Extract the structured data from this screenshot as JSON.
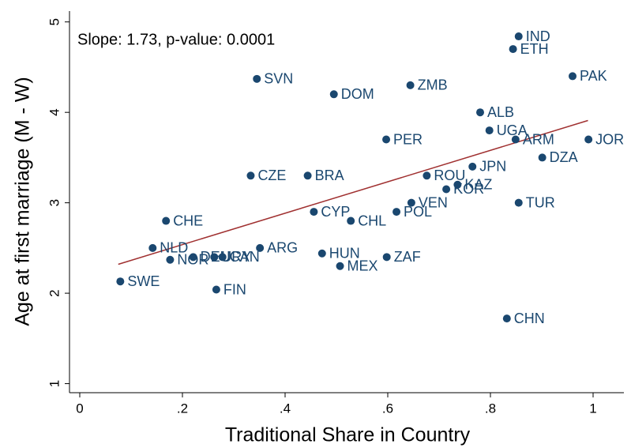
{
  "chart_data": {
    "type": "scatter",
    "annotation": "Slope: 1.73, p-value: 0.0001",
    "x_label": "Traditional Share in Country",
    "y_label": "Age at first marriage (M - W)",
    "color": "#1a476f",
    "labels": [
      "IND",
      "ETH",
      "PAK",
      "SVN",
      "ZMB",
      "DOM",
      "ALB",
      "UGA",
      "PER",
      "ARM",
      "JOR",
      "DZA",
      "JPN",
      "CZE",
      "BRA",
      "ROU",
      "KAZ",
      "KOR",
      "TUR",
      "VEN",
      "CYP",
      "POL",
      "CHE",
      "CHL",
      "ARG",
      "NLD",
      "HUN",
      "ZAF",
      "DEU",
      "URY",
      "CAN",
      "NOR",
      "MEX",
      "SWE",
      "FIN",
      "CHN"
    ],
    "x": [
      0.855,
      0.844,
      0.96,
      0.345,
      0.644,
      0.495,
      0.78,
      0.798,
      0.597,
      0.849,
      0.991,
      0.901,
      0.765,
      0.333,
      0.444,
      0.676,
      0.736,
      0.714,
      0.855,
      0.646,
      0.456,
      0.617,
      0.168,
      0.528,
      0.351,
      0.142,
      0.472,
      0.598,
      0.221,
      0.262,
      0.278,
      0.176,
      0.507,
      0.079,
      0.266,
      0.832
    ],
    "values": [
      4.84,
      4.7,
      4.4,
      4.37,
      4.3,
      4.2,
      4.0,
      3.8,
      3.7,
      3.7,
      3.7,
      3.5,
      3.4,
      3.3,
      3.3,
      3.3,
      3.2,
      3.15,
      3.0,
      3.0,
      2.9,
      2.9,
      2.8,
      2.8,
      2.5,
      2.5,
      2.44,
      2.4,
      2.4,
      2.4,
      2.4,
      2.37,
      2.3,
      2.13,
      2.04,
      1.72
    ],
    "fit_line": {
      "color": "#a03030",
      "x": [
        0.075,
        0.99
      ],
      "y": [
        2.32,
        3.91
      ]
    },
    "xlim": [
      -0.02,
      1.06
    ],
    "ylim": [
      0.9,
      5.12
    ],
    "xticks": [
      0,
      {
        "value": 0.2,
        "label": ".2"
      },
      {
        "value": 0.4,
        "label": ".4"
      },
      {
        "value": 0.6,
        "label": ".6"
      },
      {
        "value": 0.8,
        "label": ".8"
      },
      1
    ],
    "yticks": [
      1,
      2,
      3,
      4,
      5
    ]
  }
}
